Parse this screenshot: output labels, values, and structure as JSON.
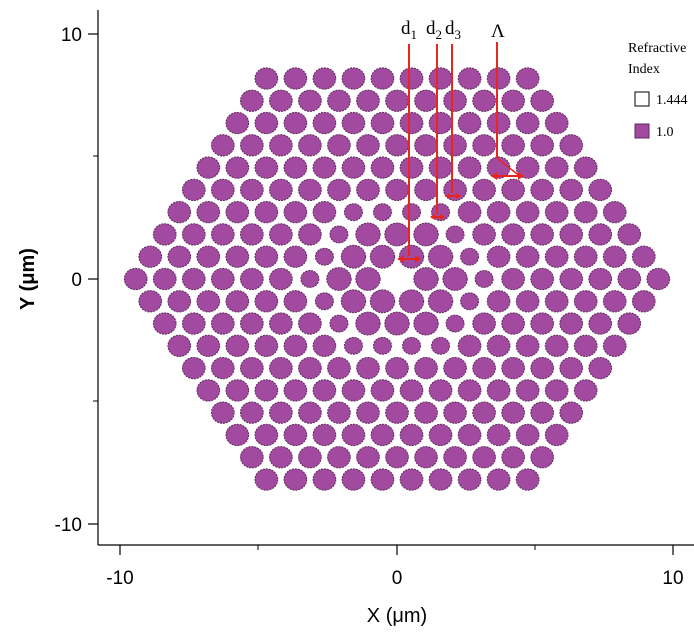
{
  "chart_data": {
    "type": "scatter",
    "xlabel": "X (μm)",
    "ylabel": "Y (μm)",
    "xlim": [
      -10.7,
      10.6
    ],
    "ylim": [
      -10.7,
      10.2
    ],
    "x_ticks": [
      "-10",
      "0",
      "10"
    ],
    "y_ticks": [
      "10",
      "0",
      "-10"
    ],
    "grid": false,
    "lattice": {
      "pitch": 1.05,
      "rings": 9,
      "hole_colors": {
        "fill": "#a24aa0",
        "edge": "#5e2a5c"
      },
      "core": "missing central hole"
    },
    "hole_diameters_um": {
      "outer": 0.82,
      "ring3": 0.65,
      "ring2": 0.88,
      "ring1": 0.88
    },
    "annotations": [
      {
        "label": "d",
        "sub": "1"
      },
      {
        "label": "d",
        "sub": "2"
      },
      {
        "label": "d",
        "sub": "3"
      },
      {
        "label": "Λ"
      }
    ],
    "legend": {
      "title_line1": "Refractive",
      "title_line2": "Index",
      "position": "top-right",
      "items": [
        {
          "label": "1.444",
          "color": "#ffffff"
        },
        {
          "label": "1.0",
          "color": "#a24aa0"
        }
      ]
    },
    "marker_color": "#e8251f"
  }
}
